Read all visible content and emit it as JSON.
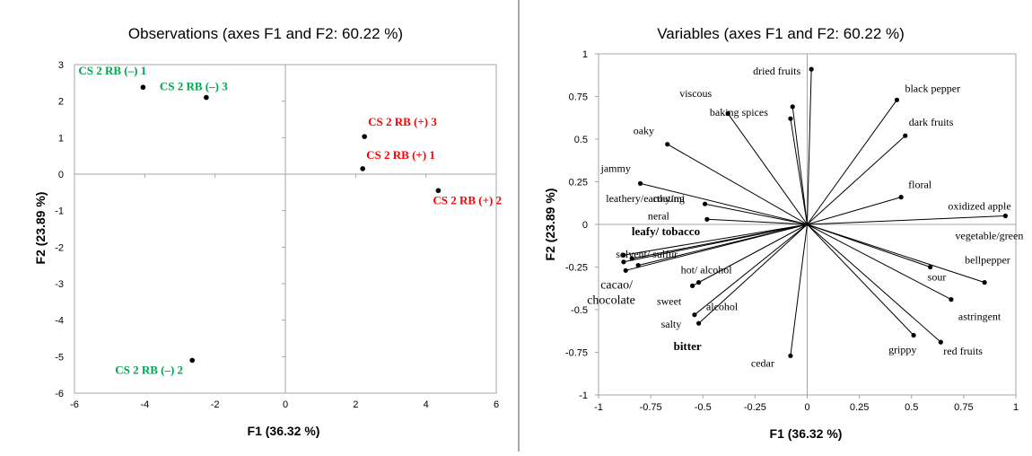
{
  "colors": {
    "negative": "#00a651",
    "positive": "#ff0000",
    "ink": "#000000",
    "frame": "#a6a6a6",
    "red_vector": "#c0504d"
  },
  "chart_data": [
    {
      "type": "scatter",
      "title": "Observations (axes F1 and F2: 60.22 %)",
      "xlabel": "F1 (36.32 %)",
      "ylabel": "F2 (23.89 %)",
      "xlim": [
        -6,
        6
      ],
      "ylim": [
        -6,
        3
      ],
      "xticks": [
        "-6",
        "-4",
        "-2",
        "0",
        "2",
        "4",
        "6"
      ],
      "yticks": [
        "3",
        "2",
        "1",
        "0",
        "-1",
        "-2",
        "-3",
        "-4",
        "-5",
        "-6"
      ],
      "points": [
        {
          "label": "CS 2 RB (–) 1",
          "x": -4.05,
          "y": 2.38,
          "group": "negative"
        },
        {
          "label": "CS 2 RB (–) 3",
          "x": -2.25,
          "y": 2.1,
          "group": "negative"
        },
        {
          "label": "CS 2 RB (–) 2",
          "x": -2.65,
          "y": -5.1,
          "group": "negative"
        },
        {
          "label": "CS 2 RB (+) 3",
          "x": 2.25,
          "y": 1.03,
          "group": "positive"
        },
        {
          "label": "CS 2 RB (+) 1",
          "x": 2.2,
          "y": 0.15,
          "group": "positive"
        },
        {
          "label": "CS 2 RB (+) 2",
          "x": 4.35,
          "y": -0.45,
          "group": "positive"
        }
      ]
    },
    {
      "type": "scatter",
      "title": "Variables (axes F1 and F2: 60.22 %)",
      "xlabel": "F1 (36.32 %)",
      "ylabel": "F2 (23.89 %)",
      "xlim": [
        -1,
        1
      ],
      "ylim": [
        -1,
        1
      ],
      "xticks": [
        "-1",
        "-0.75",
        "-0.5",
        "-0.25",
        "0",
        "0.25",
        "0.5",
        "0.75",
        "1"
      ],
      "yticks": [
        "1",
        "0.75",
        "0.5",
        "0.25",
        "0",
        "-0.25",
        "-0.5",
        "-0.75",
        "-1"
      ],
      "vectors": [
        {
          "label": "dried fruits",
          "x": 0.02,
          "y": 0.91,
          "style": "normal"
        },
        {
          "label": "viscous",
          "x": -0.07,
          "y": 0.69,
          "style": "normal"
        },
        {
          "label": "baking spices",
          "x": -0.08,
          "y": 0.62,
          "style": "normal"
        },
        {
          "label": "",
          "x": -0.38,
          "y": 0.65,
          "style": "normal"
        },
        {
          "label": "black pepper",
          "x": 0.43,
          "y": 0.73,
          "style": "normal"
        },
        {
          "label": "dark fruits",
          "x": 0.47,
          "y": 0.52,
          "style": "normal"
        },
        {
          "label": "oaky",
          "x": -0.67,
          "y": 0.47,
          "style": "normal"
        },
        {
          "label": "jammy",
          "x": -0.8,
          "y": 0.24,
          "style": "normal"
        },
        {
          "label": "coating",
          "x": -0.49,
          "y": 0.12,
          "style": "normal"
        },
        {
          "label": "leathery/earthy/mi",
          "x": -0.5,
          "y": 0.12,
          "style": "none"
        },
        {
          "label": "neral",
          "x": -0.48,
          "y": 0.03,
          "style": "normal"
        },
        {
          "label": "floral",
          "x": 0.45,
          "y": 0.16,
          "style": "normal"
        },
        {
          "label": "oxidized  apple",
          "x": 0.95,
          "y": 0.05,
          "style": "normal"
        },
        {
          "label": "vegetable/green",
          "x": 0.95,
          "y": 0.05,
          "style": "none"
        },
        {
          "label": "bellpepper",
          "x": 0.85,
          "y": -0.34,
          "style": "normal"
        },
        {
          "label": "leafy/ tobacco",
          "x": -0.88,
          "y": -0.18,
          "style": "bold"
        },
        {
          "label": "solvent/  sulfur",
          "x": -0.84,
          "y": -0.2,
          "style": "normal"
        },
        {
          "label": "",
          "x": -0.88,
          "y": -0.22,
          "style": "normal"
        },
        {
          "label": "",
          "x": -0.81,
          "y": -0.24,
          "style": "normal"
        },
        {
          "label": "cacao/",
          "x": -0.87,
          "y": -0.27,
          "style": "big"
        },
        {
          "label": "chocolate",
          "x": -0.87,
          "y": -0.27,
          "style": "none-big"
        },
        {
          "label": "hot/  alcohol",
          "x": -0.52,
          "y": -0.34,
          "style": "red"
        },
        {
          "label": "",
          "x": -0.55,
          "y": -0.36,
          "style": "normal"
        },
        {
          "label": "alcohol",
          "x": -0.54,
          "y": -0.53,
          "style": "normal"
        },
        {
          "label": "sweet",
          "x": -0.54,
          "y": -0.53,
          "style": "none"
        },
        {
          "label": "salty",
          "x": -0.52,
          "y": -0.58,
          "style": "normal"
        },
        {
          "label": "bitter",
          "x": -0.52,
          "y": -0.58,
          "style": "none-bold"
        },
        {
          "label": "cedar",
          "x": -0.08,
          "y": -0.77,
          "style": "normal"
        },
        {
          "label": "sour",
          "x": 0.59,
          "y": -0.25,
          "style": "normal"
        },
        {
          "label": "astringent",
          "x": 0.69,
          "y": -0.44,
          "style": "normal"
        },
        {
          "label": "grippy",
          "x": 0.51,
          "y": -0.65,
          "style": "normal"
        },
        {
          "label": "red fruits",
          "x": 0.64,
          "y": -0.69,
          "style": "normal"
        }
      ]
    }
  ]
}
